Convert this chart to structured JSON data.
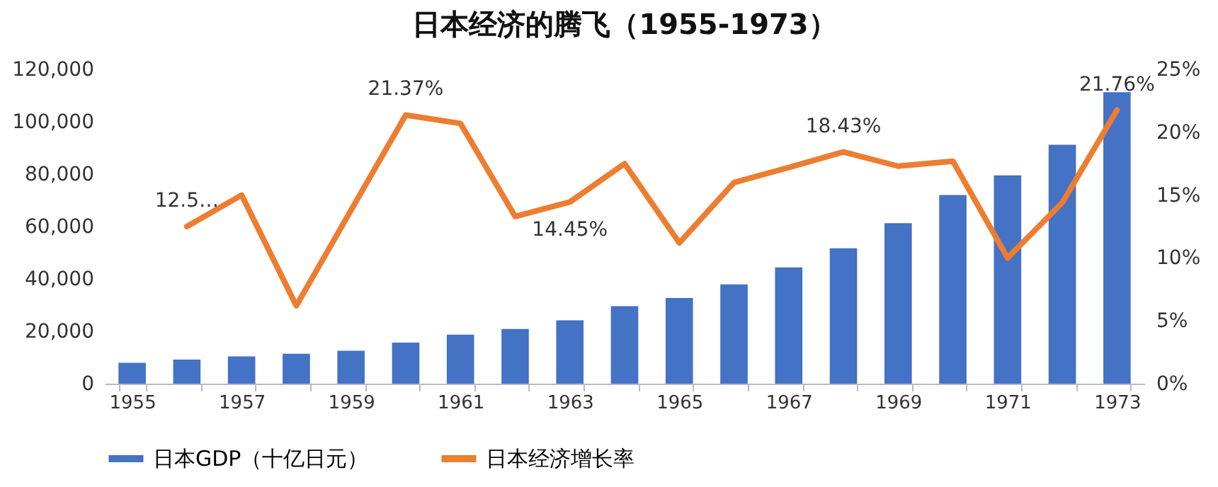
{
  "chart_data": {
    "type": "bar",
    "title": "日本经济的腾飞（1955-1973）",
    "categories": [
      "1955",
      null,
      "1957",
      null,
      "1959",
      null,
      "1961",
      null,
      "1963",
      null,
      "1965",
      null,
      "1967",
      null,
      "1969",
      null,
      "1971",
      null,
      "1973"
    ],
    "series": [
      {
        "name": "日本GDP（十亿日元）",
        "color": "#4472c4",
        "values": [
          8000,
          9200,
          10400,
          11400,
          12600,
          15700,
          18700,
          20900,
          24200,
          29600,
          32700,
          37900,
          44400,
          51700,
          61300,
          72000,
          79500,
          91200,
          111300
        ]
      },
      {
        "name": "日本经济增长率",
        "type": "line",
        "axis": "y2",
        "color": "#ed7d31",
        "values": [
          null,
          12.5,
          15.0,
          6.2,
          13.8,
          21.37,
          20.7,
          13.3,
          14.45,
          17.5,
          11.2,
          16.0,
          17.2,
          18.43,
          17.3,
          17.7,
          10.0,
          14.4,
          21.76
        ],
        "value_labels": [
          null,
          "12.5…",
          null,
          null,
          null,
          "21.37%",
          null,
          null,
          "14.45%",
          null,
          null,
          null,
          null,
          "18.43%",
          null,
          null,
          null,
          null,
          "21.76%"
        ]
      }
    ],
    "ylim": [
      0,
      120000
    ],
    "yticks": [
      0,
      {
        "value": 20000,
        "label": "20,000"
      },
      {
        "value": 40000,
        "label": "40,000"
      },
      {
        "value": 60000,
        "label": "60,000"
      },
      {
        "value": 80000,
        "label": "80,000"
      },
      {
        "value": 100000,
        "label": "100,000"
      },
      {
        "value": 120000,
        "label": "120,000"
      }
    ],
    "y2lim": [
      0,
      25
    ],
    "y2ticks": [
      {
        "value": 0,
        "label": "0%"
      },
      {
        "value": 5,
        "label": "5%"
      },
      {
        "value": 10,
        "label": "10%"
      },
      {
        "value": 15,
        "label": "15%"
      },
      {
        "value": 20,
        "label": "20%"
      },
      {
        "value": 25,
        "label": "25%"
      }
    ],
    "legend": "bottom",
    "grid": false
  }
}
